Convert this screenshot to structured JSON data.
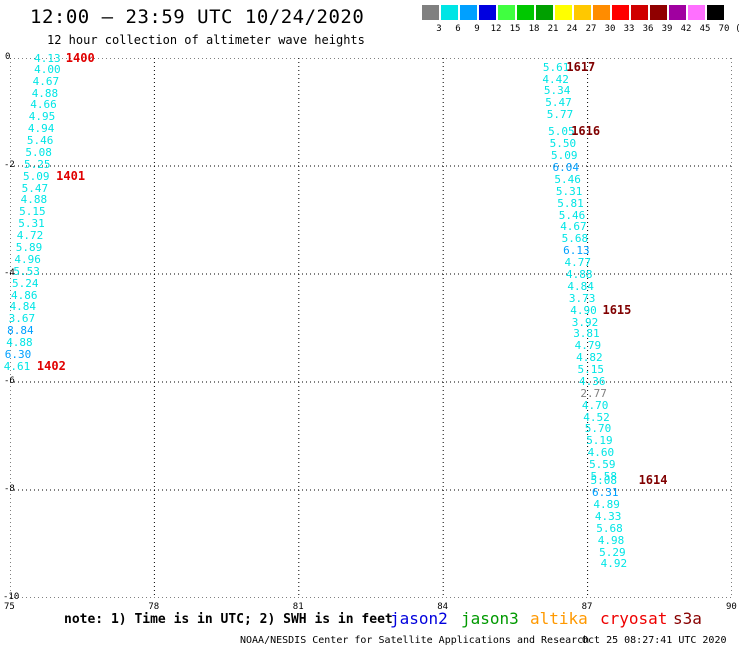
{
  "header": {
    "title": "12:00 – 23:59 UTC 10/24/2020",
    "subtitle": "12 hour collection of altimeter wave heights"
  },
  "legend": {
    "unit": "(ft)",
    "bins": [
      {
        "label": "3",
        "color": "#808080"
      },
      {
        "label": "6",
        "color": "#00e5e5"
      },
      {
        "label": "9",
        "color": "#00a0ff"
      },
      {
        "label": "12",
        "color": "#0000e0"
      },
      {
        "label": "15",
        "color": "#40ff40"
      },
      {
        "label": "18",
        "color": "#00c800"
      },
      {
        "label": "21",
        "color": "#00a000"
      },
      {
        "label": "24",
        "color": "#ffff00"
      },
      {
        "label": "27",
        "color": "#ffc800"
      },
      {
        "label": "30",
        "color": "#ff8c00"
      },
      {
        "label": "33",
        "color": "#ff0000"
      },
      {
        "label": "36",
        "color": "#d00000"
      },
      {
        "label": "39",
        "color": "#900000"
      },
      {
        "label": "42",
        "color": "#a000a0"
      },
      {
        "label": "45",
        "color": "#ff70ff"
      },
      {
        "label": "70",
        "color": "#000000"
      }
    ]
  },
  "map": {
    "lon_range": [
      75,
      90
    ],
    "lat_range": [
      -10,
      0
    ],
    "lon_ticks": [
      "75",
      "78",
      "81",
      "84",
      "87",
      "90"
    ],
    "lat_ticks": [
      "0",
      "-2",
      "-4",
      "-6",
      "-8",
      "-10"
    ],
    "grid": true
  },
  "tracks": [
    {
      "id": "track-1400",
      "points": [
        {
          "lon": 75.75,
          "lat": 0.0,
          "value": "4.13",
          "color": "#00e5e5"
        },
        {
          "lon": 75.75,
          "lat": -0.2,
          "value": "4.00",
          "color": "#00e5e5"
        },
        {
          "lon": 75.72,
          "lat": -0.42,
          "value": "4.67",
          "color": "#00e5e5"
        },
        {
          "lon": 75.7,
          "lat": -0.64,
          "value": "4.88",
          "color": "#00e5e5"
        },
        {
          "lon": 75.67,
          "lat": -0.86,
          "value": "4.66",
          "color": "#00e5e5"
        },
        {
          "lon": 75.64,
          "lat": -1.08,
          "value": "4.95",
          "color": "#00e5e5"
        },
        {
          "lon": 75.62,
          "lat": -1.3,
          "value": "4.94",
          "color": "#00e5e5"
        },
        {
          "lon": 75.6,
          "lat": -1.52,
          "value": "5.46",
          "color": "#00e5e5"
        },
        {
          "lon": 75.57,
          "lat": -1.74,
          "value": "5.08",
          "color": "#00e5e5"
        },
        {
          "lon": 75.54,
          "lat": -1.96,
          "value": "5.25",
          "color": "#00e5e5"
        },
        {
          "lon": 75.52,
          "lat": -2.18,
          "value": "5.09",
          "color": "#00e5e5"
        },
        {
          "lon": 75.49,
          "lat": -2.4,
          "value": "5.47",
          "color": "#00e5e5"
        },
        {
          "lon": 75.47,
          "lat": -2.62,
          "value": "4.88",
          "color": "#00e5e5"
        },
        {
          "lon": 75.44,
          "lat": -2.84,
          "value": "5.15",
          "color": "#00e5e5"
        },
        {
          "lon": 75.42,
          "lat": -3.06,
          "value": "5.31",
          "color": "#00e5e5"
        },
        {
          "lon": 75.39,
          "lat": -3.28,
          "value": "4.72",
          "color": "#00e5e5"
        },
        {
          "lon": 75.37,
          "lat": -3.5,
          "value": "5.89",
          "color": "#00e5e5"
        },
        {
          "lon": 75.34,
          "lat": -3.72,
          "value": "4.96",
          "color": "#00e5e5"
        },
        {
          "lon": 75.32,
          "lat": -3.94,
          "value": "5.53",
          "color": "#00e5e5"
        },
        {
          "lon": 75.29,
          "lat": -4.16,
          "value": "5.24",
          "color": "#00e5e5"
        },
        {
          "lon": 75.27,
          "lat": -4.38,
          "value": "4.86",
          "color": "#00e5e5"
        },
        {
          "lon": 75.24,
          "lat": -4.6,
          "value": "4.84",
          "color": "#00e5e5"
        },
        {
          "lon": 75.22,
          "lat": -4.82,
          "value": "3.67",
          "color": "#00e5e5"
        },
        {
          "lon": 75.19,
          "lat": -5.04,
          "value": "8.84",
          "color": "#00a0ff"
        },
        {
          "lon": 75.17,
          "lat": -5.26,
          "value": "4.88",
          "color": "#00e5e5"
        },
        {
          "lon": 75.14,
          "lat": -5.48,
          "value": "6.30",
          "color": "#00a0ff"
        },
        {
          "lon": 75.12,
          "lat": -5.7,
          "value": "4.61",
          "color": "#00e5e5"
        }
      ]
    },
    {
      "id": "track-1617",
      "points": [
        {
          "lon": 86.32,
          "lat": -0.16,
          "value": "5.61",
          "color": "#00e5e5"
        },
        {
          "lon": 86.31,
          "lat": -0.38,
          "value": "4.42",
          "color": "#00e5e5"
        },
        {
          "lon": 86.34,
          "lat": -0.6,
          "value": "5.34",
          "color": "#00e5e5"
        },
        {
          "lon": 86.37,
          "lat": -0.82,
          "value": "5.47",
          "color": "#00e5e5"
        },
        {
          "lon": 86.4,
          "lat": -1.04,
          "value": "5.77",
          "color": "#00e5e5"
        },
        {
          "lon": 86.43,
          "lat": -1.36,
          "value": "5.05",
          "color": "#00e5e5"
        },
        {
          "lon": 86.46,
          "lat": -1.58,
          "value": "5.50",
          "color": "#00e5e5"
        },
        {
          "lon": 86.49,
          "lat": -1.8,
          "value": "5.09",
          "color": "#00e5e5"
        },
        {
          "lon": 86.52,
          "lat": -2.02,
          "value": "6.04",
          "color": "#00a0ff"
        },
        {
          "lon": 86.56,
          "lat": -2.24,
          "value": "5.46",
          "color": "#00e5e5"
        },
        {
          "lon": 86.59,
          "lat": -2.46,
          "value": "5.31",
          "color": "#00e5e5"
        },
        {
          "lon": 86.62,
          "lat": -2.68,
          "value": "5.81",
          "color": "#00e5e5"
        },
        {
          "lon": 86.65,
          "lat": -2.9,
          "value": "5.46",
          "color": "#00e5e5"
        },
        {
          "lon": 86.68,
          "lat": -3.12,
          "value": "4.67",
          "color": "#00e5e5"
        },
        {
          "lon": 86.71,
          "lat": -3.34,
          "value": "5.68",
          "color": "#00e5e5"
        },
        {
          "lon": 86.74,
          "lat": -3.56,
          "value": "6.13",
          "color": "#00a0ff"
        },
        {
          "lon": 86.77,
          "lat": -3.78,
          "value": "4.77",
          "color": "#00e5e5"
        },
        {
          "lon": 86.8,
          "lat": -4.0,
          "value": "4.88",
          "color": "#00e5e5"
        },
        {
          "lon": 86.83,
          "lat": -4.22,
          "value": "4.84",
          "color": "#00e5e5"
        },
        {
          "lon": 86.86,
          "lat": -4.44,
          "value": "3.73",
          "color": "#00e5e5"
        },
        {
          "lon": 86.89,
          "lat": -4.66,
          "value": "4.90",
          "color": "#00e5e5"
        },
        {
          "lon": 86.92,
          "lat": -4.88,
          "value": "3.92",
          "color": "#00e5e5"
        },
        {
          "lon": 86.95,
          "lat": -5.1,
          "value": "3.81",
          "color": "#00e5e5"
        },
        {
          "lon": 86.98,
          "lat": -5.32,
          "value": "4.79",
          "color": "#00e5e5"
        },
        {
          "lon": 87.01,
          "lat": -5.54,
          "value": "4.82",
          "color": "#00e5e5"
        },
        {
          "lon": 87.04,
          "lat": -5.76,
          "value": "5.15",
          "color": "#00e5e5"
        },
        {
          "lon": 87.07,
          "lat": -5.98,
          "value": "4.36",
          "color": "#00e5e5"
        },
        {
          "lon": 87.1,
          "lat": -6.2,
          "value": "2.77",
          "color": "#808080"
        },
        {
          "lon": 87.13,
          "lat": -6.42,
          "value": "4.70",
          "color": "#00e5e5"
        },
        {
          "lon": 87.16,
          "lat": -6.64,
          "value": "4.52",
          "color": "#00e5e5"
        },
        {
          "lon": 87.19,
          "lat": -6.86,
          "value": "5.70",
          "color": "#00e5e5"
        },
        {
          "lon": 87.22,
          "lat": -7.08,
          "value": "5.19",
          "color": "#00e5e5"
        },
        {
          "lon": 87.25,
          "lat": -7.3,
          "value": "4.60",
          "color": "#00e5e5"
        },
        {
          "lon": 87.28,
          "lat": -7.52,
          "value": "5.59",
          "color": "#00e5e5"
        },
        {
          "lon": 87.31,
          "lat": -7.74,
          "value": "5.58",
          "color": "#00e5e5"
        },
        {
          "lon": 87.31,
          "lat": -7.82,
          "value": "5.08",
          "color": "#00e5e5"
        },
        {
          "lon": 87.34,
          "lat": -8.04,
          "value": "6.31",
          "color": "#00a0ff"
        },
        {
          "lon": 87.37,
          "lat": -8.26,
          "value": "4.89",
          "color": "#00e5e5"
        },
        {
          "lon": 87.4,
          "lat": -8.48,
          "value": "4.33",
          "color": "#00e5e5"
        },
        {
          "lon": 87.43,
          "lat": -8.7,
          "value": "5.68",
          "color": "#00e5e5"
        },
        {
          "lon": 87.46,
          "lat": -8.92,
          "value": "4.98",
          "color": "#00e5e5"
        },
        {
          "lon": 87.49,
          "lat": -9.14,
          "value": "5.29",
          "color": "#00e5e5"
        },
        {
          "lon": 87.52,
          "lat": -9.36,
          "value": "4.92",
          "color": "#00e5e5"
        }
      ]
    }
  ],
  "pass_labels": [
    {
      "lon": 76.45,
      "lat": 0.0,
      "text": "1400",
      "color": "#e00000"
    },
    {
      "lon": 76.25,
      "lat": -2.18,
      "text": "1401",
      "color": "#e00000"
    },
    {
      "lon": 75.85,
      "lat": -5.7,
      "text": "1402",
      "color": "#e00000"
    },
    {
      "lon": 86.85,
      "lat": -0.16,
      "text": "1617",
      "color": "#800000"
    },
    {
      "lon": 86.95,
      "lat": -1.36,
      "text": "1616",
      "color": "#800000"
    },
    {
      "lon": 87.6,
      "lat": -4.66,
      "text": "1615",
      "color": "#800000"
    },
    {
      "lon": 88.35,
      "lat": -7.82,
      "text": "1614",
      "color": "#800000"
    }
  ],
  "note": "note: 1) Time is in UTC; 2) SWH is in feet",
  "satellites": [
    {
      "name": "jason2",
      "color": "#0000dd"
    },
    {
      "name": "jason3",
      "color": "#009900"
    },
    {
      "name": "altika",
      "color": "#ff9900"
    },
    {
      "name": "cryosat",
      "color": "#ee0000"
    },
    {
      "name": "s3a",
      "color": "#880000"
    }
  ],
  "footer": "NOAA/NESDIS Center for Satellite Applications and Research",
  "timestamp": "Oct 25 08:27:41 UTC 2020"
}
